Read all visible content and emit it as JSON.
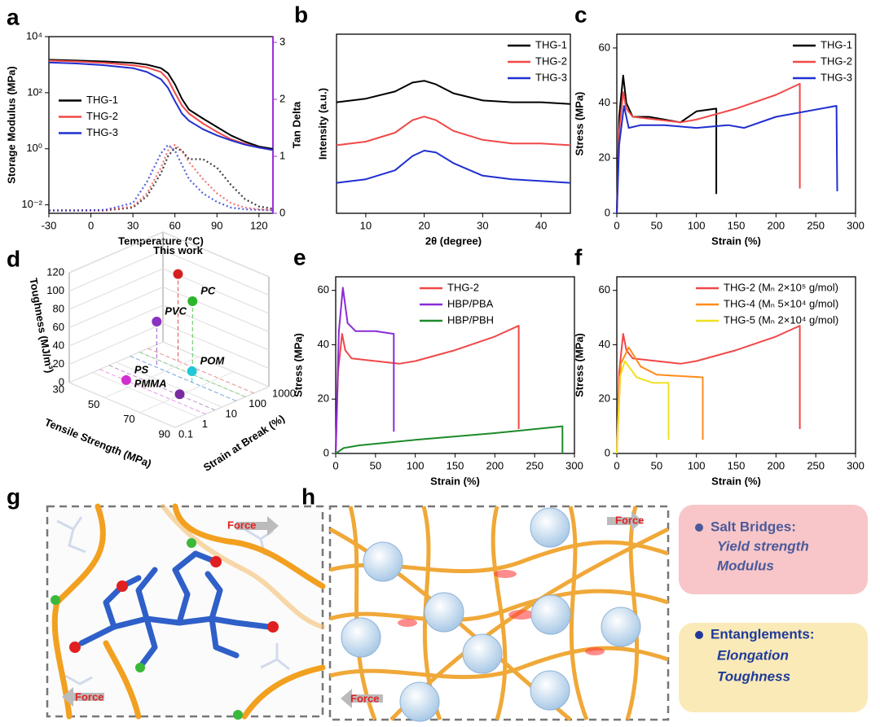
{
  "chart_data": [
    {
      "panel": "a",
      "type": "line",
      "x_label": "Temperature (°C)",
      "y_label": "Storage Modulus (MPa)",
      "y2_label": "Tan Delta",
      "y2_color": "#9b30d9",
      "yscale": "log",
      "x": [
        -30,
        -10,
        10,
        30,
        40,
        50,
        55,
        60,
        65,
        70,
        80,
        90,
        100,
        110,
        120,
        130
      ],
      "xlim": [
        -30,
        130
      ],
      "xticks": [
        -30,
        0,
        30,
        60,
        90,
        120
      ],
      "ylim": [
        0.005,
        10000
      ],
      "yticks": [
        {
          "value": 0.01,
          "label": "10⁻²"
        },
        {
          "value": 1,
          "label": "10⁰"
        },
        {
          "value": 100,
          "label": "10²"
        },
        {
          "value": 10000,
          "label": "10⁴"
        }
      ],
      "y2lim": [
        0,
        3.1
      ],
      "y2ticks": [
        0,
        1,
        2,
        3
      ],
      "legend": "center left",
      "series": [
        {
          "name": "THG-1",
          "color": "#000000",
          "values": [
            1500,
            1400,
            1300,
            1150,
            1000,
            750,
            500,
            200,
            60,
            25,
            12,
            6,
            3,
            1.8,
            1.2,
            1.0
          ],
          "y2_values": [
            0.05,
            0.05,
            0.05,
            0.1,
            0.3,
            0.7,
            1.0,
            1.15,
            1.1,
            0.95,
            0.95,
            0.8,
            0.5,
            0.25,
            0.12,
            0.08
          ]
        },
        {
          "name": "THG-2",
          "color": "#f04848",
          "values": [
            1400,
            1300,
            1150,
            950,
            800,
            550,
            300,
            100,
            35,
            18,
            8,
            4,
            2.2,
            1.5,
            1.1,
            0.9
          ],
          "y2_values": [
            0.05,
            0.05,
            0.05,
            0.12,
            0.35,
            0.8,
            1.1,
            1.2,
            1.1,
            0.9,
            0.6,
            0.35,
            0.18,
            0.1,
            0.07,
            0.06
          ]
        },
        {
          "name": "THG-3",
          "color": "#1f2fd0",
          "values": [
            1200,
            1100,
            950,
            750,
            550,
            300,
            150,
            50,
            18,
            10,
            5,
            3,
            2,
            1.4,
            1.1,
            0.9
          ],
          "y2_values": [
            0.05,
            0.05,
            0.06,
            0.18,
            0.55,
            1.05,
            1.2,
            1.1,
            0.85,
            0.6,
            0.35,
            0.2,
            0.1,
            0.07,
            0.06,
            0.05
          ]
        }
      ]
    },
    {
      "panel": "b",
      "type": "line",
      "x_label": "2θ (degree)",
      "y_label": "Intensity (a.u.)",
      "x": [
        5,
        10,
        15,
        18,
        20,
        22,
        25,
        30,
        35,
        40,
        45
      ],
      "xlim": [
        5,
        45
      ],
      "xticks": [
        10,
        20,
        30,
        40
      ],
      "ylim": [
        0,
        1
      ],
      "legend": "upper right",
      "series": [
        {
          "name": "THG-1",
          "color": "#000000",
          "values": [
            0.62,
            0.64,
            0.68,
            0.73,
            0.74,
            0.72,
            0.67,
            0.63,
            0.62,
            0.62,
            0.61
          ]
        },
        {
          "name": "THG-2",
          "color": "#f04848",
          "values": [
            0.38,
            0.4,
            0.45,
            0.52,
            0.54,
            0.52,
            0.46,
            0.41,
            0.39,
            0.39,
            0.38
          ]
        },
        {
          "name": "THG-3",
          "color": "#1f2fd0",
          "values": [
            0.17,
            0.19,
            0.24,
            0.32,
            0.35,
            0.34,
            0.28,
            0.21,
            0.19,
            0.18,
            0.17
          ]
        }
      ]
    },
    {
      "panel": "c",
      "type": "line",
      "x_label": "Strain (%)",
      "y_label": "Stress (MPa)",
      "xlim": [
        0,
        300
      ],
      "xticks": [
        0,
        50,
        100,
        150,
        200,
        250,
        300
      ],
      "ylim": [
        0,
        65
      ],
      "yticks": [
        0,
        20,
        40,
        60
      ],
      "legend": "upper right",
      "series": [
        {
          "name": "THG-1",
          "color": "#000000",
          "x": [
            0,
            3,
            8,
            12,
            20,
            40,
            60,
            80,
            100,
            125,
            125
          ],
          "values": [
            0,
            35,
            50,
            40,
            35,
            35,
            34,
            33,
            37,
            38,
            7
          ]
        },
        {
          "name": "THG-2",
          "color": "#f04848",
          "x": [
            0,
            3,
            8,
            12,
            20,
            50,
            80,
            100,
            150,
            200,
            230,
            230
          ],
          "values": [
            0,
            30,
            44,
            38,
            35,
            34,
            33,
            34,
            38,
            43,
            47,
            9
          ]
        },
        {
          "name": "THG-3",
          "color": "#1f2fd0",
          "x": [
            0,
            3,
            9,
            15,
            30,
            60,
            100,
            140,
            160,
            200,
            276,
            277
          ],
          "values": [
            0,
            25,
            39,
            31,
            32,
            32,
            31,
            32,
            31,
            35,
            39,
            8
          ]
        }
      ]
    },
    {
      "panel": "d",
      "type": "scatter3d",
      "x_label": "Tensile Strength (MPa)",
      "y_label": "Strain at Break (%)",
      "z_label": "Toughness (MJ/m³)",
      "xlim": [
        30,
        90
      ],
      "xticks": [
        30,
        50,
        70,
        90
      ],
      "ylim": [
        0.1,
        1000
      ],
      "yticks": [
        0.1,
        1,
        10,
        100,
        1000
      ],
      "zlim": [
        0,
        120
      ],
      "zticks": [
        0,
        20,
        40,
        60,
        80,
        100,
        120
      ],
      "series": [
        {
          "name": "This work",
          "color": "#d42020",
          "x": 47,
          "y": 230,
          "z": 95
        },
        {
          "name": "PC",
          "color": "#2bb52b",
          "x": 60,
          "y": 100,
          "z": 80
        },
        {
          "name": "PVC",
          "color": "#8b30c0",
          "x": 45,
          "y": 40,
          "z": 50
        },
        {
          "name": "POM",
          "color": "#20c8d8",
          "x": 65,
          "y": 40,
          "z": 12
        },
        {
          "name": "PMMA",
          "color": "#7a2aa0",
          "x": 70,
          "y": 5,
          "z": 1
        },
        {
          "name": "PS",
          "color": "#d030d0",
          "x": 45,
          "y": 2,
          "z": 0.5
        }
      ]
    },
    {
      "panel": "e",
      "type": "line",
      "x_label": "Strain (%)",
      "y_label": "Stress (MPa)",
      "xlim": [
        0,
        300
      ],
      "xticks": [
        0,
        50,
        100,
        150,
        200,
        250,
        300
      ],
      "ylim": [
        0,
        65
      ],
      "yticks": [
        0,
        20,
        40,
        60
      ],
      "legend": "upper center",
      "series": [
        {
          "name": "THG-2",
          "color": "#f04848",
          "x": [
            0,
            3,
            8,
            12,
            20,
            50,
            80,
            100,
            150,
            200,
            230,
            230
          ],
          "values": [
            0,
            30,
            44,
            38,
            35,
            34,
            33,
            34,
            38,
            43,
            47,
            9
          ]
        },
        {
          "name": "HBP/PBA",
          "color": "#8b2bd6",
          "x": [
            0,
            4,
            9,
            15,
            25,
            50,
            73,
            73
          ],
          "values": [
            0,
            45,
            61,
            48,
            45,
            45,
            44,
            8
          ]
        },
        {
          "name": "HBP/PBH",
          "color": "#1d8a2a",
          "x": [
            0,
            10,
            30,
            100,
            200,
            285,
            285
          ],
          "values": [
            0,
            2,
            3,
            5,
            7.5,
            10,
            0
          ]
        }
      ]
    },
    {
      "panel": "f",
      "type": "line",
      "x_label": "Strain (%)",
      "y_label": "Stress (MPa)",
      "xlim": [
        0,
        300
      ],
      "xticks": [
        0,
        50,
        100,
        150,
        200,
        250,
        300
      ],
      "ylim": [
        0,
        65
      ],
      "yticks": [
        0,
        20,
        40,
        60
      ],
      "legend": "upper right",
      "series": [
        {
          "name": "THG-2 (Mₙ 2×10⁵ g/mol)",
          "color": "#f04848",
          "x": [
            0,
            3,
            8,
            12,
            20,
            50,
            80,
            100,
            150,
            200,
            230,
            230
          ],
          "values": [
            0,
            30,
            44,
            38,
            35,
            34,
            33,
            34,
            38,
            43,
            47,
            9
          ]
        },
        {
          "name": "THG-4 (Mₙ 5×10⁴ g/mol)",
          "color": "#ff8c1a",
          "x": [
            0,
            5,
            15,
            30,
            50,
            108,
            108
          ],
          "values": [
            0,
            33,
            39,
            32,
            29,
            28,
            5
          ]
        },
        {
          "name": "THG-5 (Mₙ 2×10⁴ g/mol)",
          "color": "#f0e020",
          "x": [
            0,
            4,
            10,
            25,
            45,
            65,
            65
          ],
          "values": [
            0,
            28,
            34,
            28,
            26,
            26,
            5
          ]
        }
      ]
    }
  ],
  "diagrams": {
    "g": {
      "label": "g",
      "force_labels": [
        "Force",
        "Force"
      ]
    },
    "h": {
      "label": "h",
      "force_labels": [
        "Force",
        "Force"
      ],
      "boxes": [
        {
          "title": "Salt Bridges:",
          "lines": [
            "Yield strength",
            "Modulus"
          ]
        },
        {
          "title": "Entanglements:",
          "lines": [
            "Elongation",
            "Toughness"
          ]
        }
      ]
    }
  }
}
